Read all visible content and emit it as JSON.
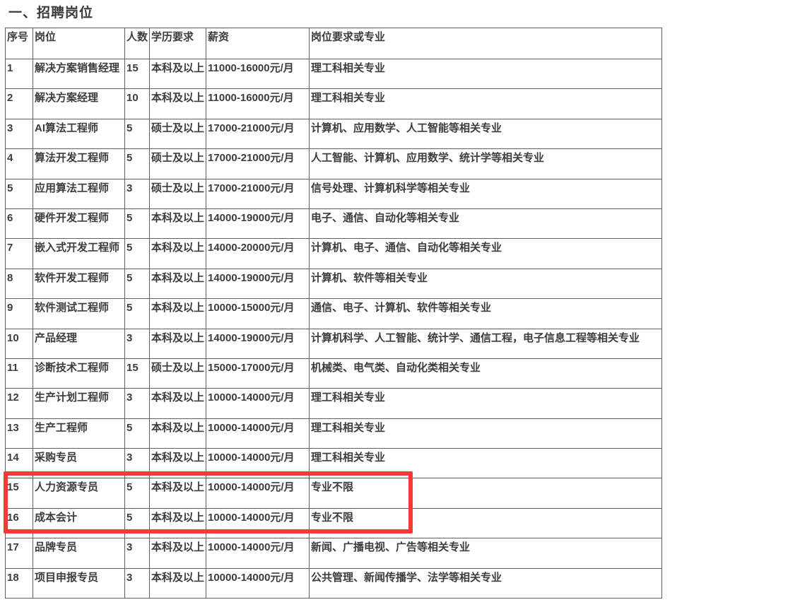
{
  "page": {
    "title": "一、招聘岗位"
  },
  "table": {
    "headers": [
      "序号",
      "岗位",
      "人数",
      "学历要求",
      "薪资",
      "岗位要求或专业"
    ],
    "rows": [
      [
        "1",
        "解决方案销售经理",
        "15",
        "本科及以上",
        "11000-16000元/月",
        "理工科相关专业"
      ],
      [
        "2",
        "解决方案经理",
        "10",
        "本科及以上",
        "11000-16000元/月",
        "理工科相关专业"
      ],
      [
        "3",
        "AI算法工程师",
        "5",
        "硕士及以上",
        "17000-21000元/月",
        "计算机、应用数学、人工智能等相关专业"
      ],
      [
        "4",
        "算法开发工程师",
        "5",
        "硕士及以上",
        "17000-21000元/月",
        "人工智能、计算机、应用数学、统计学等相关专业"
      ],
      [
        "5",
        "应用算法工程师",
        "3",
        "硕士及以上",
        "17000-21000元/月",
        "信号处理、计算机科学等相关专业"
      ],
      [
        "6",
        "硬件开发工程师",
        "5",
        "本科及以上",
        "14000-19000元/月",
        "电子、通信、自动化等相关专业"
      ],
      [
        "7",
        "嵌入式开发工程师",
        "5",
        "本科及以上",
        "14000-20000元/月",
        "计算机、电子、通信、自动化等相关专业"
      ],
      [
        "8",
        "软件开发工程师",
        "5",
        "本科及以上",
        "14000-19000元/月",
        "计算机、软件等相关专业"
      ],
      [
        "9",
        "软件测试工程师",
        "5",
        "本科及以上",
        "10000-15000元/月",
        "通信、电子、计算机、软件等相关专业"
      ],
      [
        "10",
        "产品经理",
        "3",
        "本科及以上",
        "14000-19000元/月",
        "计算机科学、人工智能、统计学、通信工程，电子信息工程等相关专业"
      ],
      [
        "11",
        "诊断技术工程师",
        "15",
        "硕士及以上",
        "15000-17000元/月",
        "机械类、电气类、自动化类相关专业"
      ],
      [
        "12",
        "生产计划工程师",
        "3",
        "本科及以上",
        "10000-14000元/月",
        "理工科相关专业"
      ],
      [
        "13",
        "生产工程师",
        "5",
        "本科及以上",
        "10000-14000元/月",
        "理工科相关专业"
      ],
      [
        "14",
        "采购专员",
        "3",
        "本科及以上",
        "10000-14000元/月",
        "理工科相关专业"
      ],
      [
        "15",
        "人力资源专员",
        "5",
        "本科及以上",
        "10000-14000元/月",
        "专业不限"
      ],
      [
        "16",
        "成本会计",
        "5",
        "本科及以上",
        "10000-14000元/月",
        "专业不限"
      ],
      [
        "17",
        "品牌专员",
        "3",
        "本科及以上",
        "10000-14000元/月",
        "新闻、广播电视、广告等相关专业"
      ],
      [
        "18",
        "项目申报专员",
        "3",
        "本科及以上",
        "10000-14000元/月",
        "公共管理、新闻传播学、法学等相关专业"
      ]
    ],
    "highlight": {
      "highlighted_row_numbers": [
        "15",
        "16"
      ],
      "color": "#f23b33"
    }
  },
  "colors": {
    "text": "#3c3c3c",
    "table_border": "#5f5f5f",
    "background": "#ffffff"
  }
}
